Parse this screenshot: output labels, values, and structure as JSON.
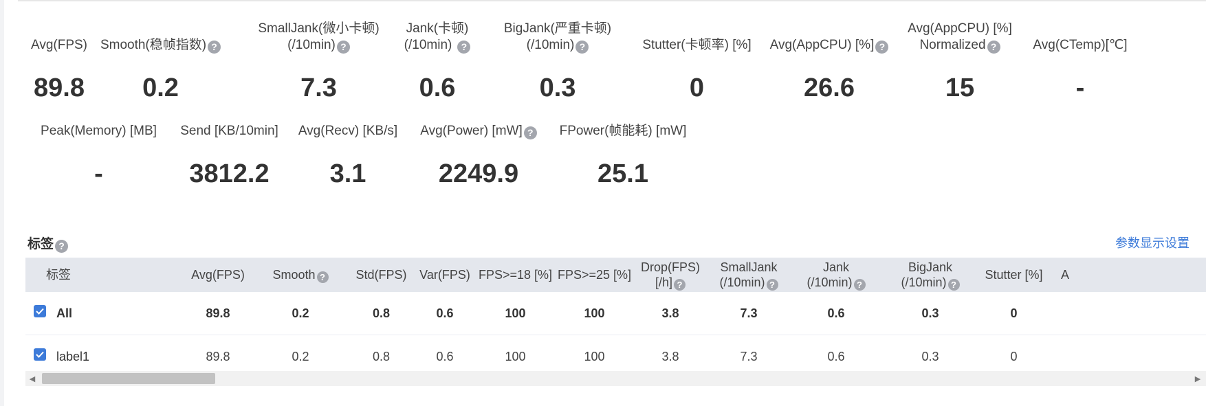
{
  "metrics_row1": [
    {
      "label": "Avg(FPS)",
      "label2": "",
      "value": "89.8",
      "help": false,
      "help2": false
    },
    {
      "label": "Smooth(稳帧指数)",
      "label2": "",
      "value": "0.2",
      "help": true,
      "help2": false
    },
    {
      "label": "SmallJank(微小卡顿)",
      "label2": "(/10min)",
      "value": "7.3",
      "help": false,
      "help2": true
    },
    {
      "label": "Jank(卡顿)",
      "label2": "(/10min)",
      "value": "0.6",
      "help": false,
      "help2": true
    },
    {
      "label": "BigJank(严重卡顿)",
      "label2": "(/10min)",
      "value": "0.3",
      "help": false,
      "help2": true
    },
    {
      "label": "Stutter(卡顿率) [%]",
      "label2": "",
      "value": "0",
      "help": false,
      "help2": false
    },
    {
      "label": "Avg(AppCPU) [%]",
      "label2": "",
      "value": "26.6",
      "help": true,
      "help2": false
    },
    {
      "label": "Avg(AppCPU) [%]",
      "label2": "Normalized",
      "value": "15",
      "help": false,
      "help2": true
    },
    {
      "label": "Avg(CTemp)[℃]",
      "label2": "",
      "value": "-",
      "help": false,
      "help2": false
    }
  ],
  "metrics_row2": [
    {
      "label": "Peak(Memory) [MB]",
      "value": "-",
      "help": false
    },
    {
      "label": "Send [KB/10min]",
      "value": "3812.2",
      "help": false
    },
    {
      "label": "Avg(Recv) [KB/s]",
      "value": "3.1",
      "help": false
    },
    {
      "label": "Avg(Power) [mW]",
      "value": "2249.9",
      "help": true
    },
    {
      "label": "FPower(帧能耗) [mW]",
      "value": "25.1",
      "help": false
    }
  ],
  "section": {
    "title": "标签",
    "settings_link": "参数显示设置"
  },
  "table": {
    "headers": [
      {
        "line1": "标签",
        "line2": "",
        "help1": false,
        "help2": false
      },
      {
        "line1": "Avg(FPS)",
        "line2": "",
        "help1": false,
        "help2": false
      },
      {
        "line1": "Smooth",
        "line2": "",
        "help1": true,
        "help2": false
      },
      {
        "line1": "Std(FPS)",
        "line2": "",
        "help1": false,
        "help2": false
      },
      {
        "line1": "Var(FPS)",
        "line2": "",
        "help1": false,
        "help2": false
      },
      {
        "line1": "FPS>=18 [%]",
        "line2": "",
        "help1": false,
        "help2": false
      },
      {
        "line1": "FPS>=25 [%]",
        "line2": "",
        "help1": false,
        "help2": false
      },
      {
        "line1": "Drop(FPS)",
        "line2": "[/h]",
        "help1": false,
        "help2": true
      },
      {
        "line1": "SmallJank",
        "line2": "(/10min)",
        "help1": false,
        "help2": true
      },
      {
        "line1": "Jank",
        "line2": "(/10min)",
        "help1": false,
        "help2": true
      },
      {
        "line1": "BigJank",
        "line2": "(/10min)",
        "help1": false,
        "help2": true
      },
      {
        "line1": "Stutter [%]",
        "line2": "",
        "help1": false,
        "help2": false
      },
      {
        "line1": "A",
        "line2": "",
        "help1": false,
        "help2": false
      }
    ],
    "rows": [
      {
        "label": "All",
        "checked": true,
        "bold": true,
        "cells": [
          "89.8",
          "0.2",
          "0.8",
          "0.6",
          "100",
          "100",
          "3.8",
          "7.3",
          "0.6",
          "0.3",
          "0"
        ]
      },
      {
        "label": "label1",
        "checked": true,
        "bold": false,
        "cells": [
          "89.8",
          "0.2",
          "0.8",
          "0.6",
          "100",
          "100",
          "3.8",
          "7.3",
          "0.6",
          "0.3",
          "0"
        ]
      }
    ]
  },
  "icons": {
    "help": "?",
    "check": "✓",
    "scroll_left": "◀",
    "scroll_right": "▶"
  },
  "colors": {
    "accent": "#3d7bd9",
    "header_bg": "#e4e7ed",
    "help_icon": "#a3a6ad"
  }
}
